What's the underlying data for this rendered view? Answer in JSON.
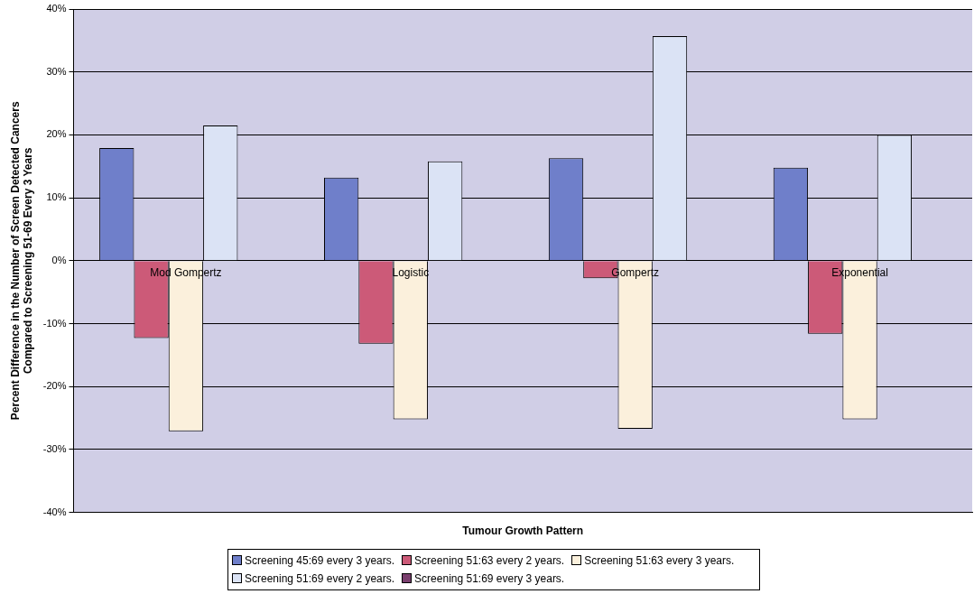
{
  "chart_data": {
    "type": "bar",
    "xlabel": "Tumour Growth Pattern",
    "ylabel": "Percent Difference in the Number of Screen Detected Cancers\nCompared to Screening 51-69 Every 3 Years",
    "categories": [
      "Mod Gompertz",
      "Logistic",
      "Gompertz",
      "Exponential"
    ],
    "series": [
      {
        "name": "Screening 45:69 every 3 years.",
        "color": "#6f7fca",
        "values": [
          17.9,
          13.2,
          16.3,
          14.8
        ]
      },
      {
        "name": "Screening 51:63 every 2 years.",
        "color": "#cc5a78",
        "values": [
          -12.3,
          -13.2,
          -2.8,
          -11.6
        ]
      },
      {
        "name": "Screening 51:63 every 3 years.",
        "color": "#fbf0dc",
        "values": [
          -27.1,
          -25.2,
          -26.7,
          -25.2
        ]
      },
      {
        "name": "Screening 51:69 every 2 years.",
        "color": "#dbe3f5",
        "values": [
          21.5,
          15.8,
          35.7,
          20.0
        ]
      },
      {
        "name": "Screening 51:69 every 3 years.",
        "color": "#7a3f6e",
        "values": [
          0,
          0,
          0,
          0
        ]
      }
    ],
    "ylim": [
      -40,
      40
    ],
    "yticks": [
      {
        "value": -40,
        "label": "-40%"
      },
      {
        "value": -30,
        "label": "-30%"
      },
      {
        "value": -20,
        "label": "-20%"
      },
      {
        "value": -10,
        "label": "-10%"
      },
      {
        "value": 0,
        "label": "0%"
      },
      {
        "value": 10,
        "label": "10%"
      },
      {
        "value": 20,
        "label": "20%"
      },
      {
        "value": 30,
        "label": "30%"
      },
      {
        "value": 40,
        "label": "40%"
      }
    ],
    "grid": "y",
    "legend": "bottom"
  }
}
